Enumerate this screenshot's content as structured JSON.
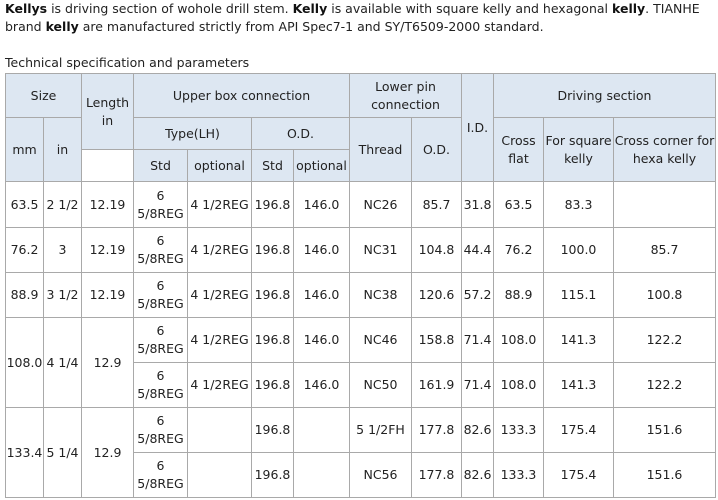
{
  "intro": {
    "w1": "Kellys",
    "t1": " is driving section of wohole drill stem. ",
    "w2": "Kelly",
    "t2": " is available with square kelly and hexagonal ",
    "w3": "kelly",
    "t3": ". TIANHE brand ",
    "w4": "kelly",
    "t4": " are manufactured strictly from API Spec7-1 and SY/T6509-2000 standard."
  },
  "caption": "Technical specification and parameters",
  "headers": {
    "size": "Size",
    "length": "Length in",
    "upper_box": "Upper box connection",
    "lower_pin": "Lower pin connection",
    "id": "I.D.",
    "driving": "Driving section",
    "type_lh": "Type(LH)",
    "od_upper": "O.D.",
    "mm": "mm",
    "in": "in",
    "thread": "Thread",
    "od_lower": "O.D.",
    "cross_flat": "Cross flat",
    "for_square": "For square kelly",
    "cross_corner": "Cross corner for hexa kelly",
    "std_type": "Std",
    "optional_type": "optional",
    "std_od": "Std",
    "optional_od": "optional"
  },
  "rows": [
    {
      "mm": "63.5",
      "in": "2 1/2",
      "length": "12.19",
      "type_std": "6 5/8REG",
      "type_opt": "4 1/2REG",
      "od_std": "196.8",
      "od_opt": "146.0",
      "thread": "NC26",
      "od_lower": "85.7",
      "id": "31.8",
      "cross_flat": "63.5",
      "square": "83.3",
      "hexa": ""
    },
    {
      "mm": "76.2",
      "in": "3",
      "length": "12.19",
      "type_std": "6 5/8REG",
      "type_opt": "4 1/2REG",
      "od_std": "196.8",
      "od_opt": "146.0",
      "thread": "NC31",
      "od_lower": "104.8",
      "id": "44.4",
      "cross_flat": "76.2",
      "square": "100.0",
      "hexa": "85.7"
    },
    {
      "mm": "88.9",
      "in": "3 1/2",
      "length": "12.19",
      "type_std": "6 5/8REG",
      "type_opt": "4 1/2REG",
      "od_std": "196.8",
      "od_opt": "146.0",
      "thread": "NC38",
      "od_lower": "120.6",
      "id": "57.2",
      "cross_flat": "88.9",
      "square": "115.1",
      "hexa": "100.8"
    },
    {
      "mm": "108.0",
      "in": "4 1/4",
      "length": "12.9",
      "type_std": "6 5/8REG",
      "type_opt": "4 1/2REG",
      "od_std": "196.8",
      "od_opt": "146.0",
      "thread": "NC46",
      "od_lower": "158.8",
      "id": "71.4",
      "cross_flat": "108.0",
      "square": "141.3",
      "hexa": "122.2"
    },
    {
      "type_std": "6 5/8REG",
      "type_opt": "4 1/2REG",
      "od_std": "196.8",
      "od_opt": "146.0",
      "thread": "NC50",
      "od_lower": "161.9",
      "id": "71.4",
      "cross_flat": "108.0",
      "square": "141.3",
      "hexa": "122.2"
    },
    {
      "mm": "133.4",
      "in": "5 1/4",
      "length": "12.9",
      "type_std": "6 5/8REG",
      "type_opt": "",
      "od_std": "196.8",
      "od_opt": "",
      "thread": "5 1/2FH",
      "od_lower": "177.8",
      "id": "82.6",
      "cross_flat": "133.3",
      "square": "175.4",
      "hexa": "151.6"
    },
    {
      "type_std": "6 5/8REG",
      "type_opt": "",
      "od_std": "196.8",
      "od_opt": "",
      "thread": "NC56",
      "od_lower": "177.8",
      "id": "82.6",
      "cross_flat": "133.3",
      "square": "175.4",
      "hexa": "151.6"
    }
  ]
}
